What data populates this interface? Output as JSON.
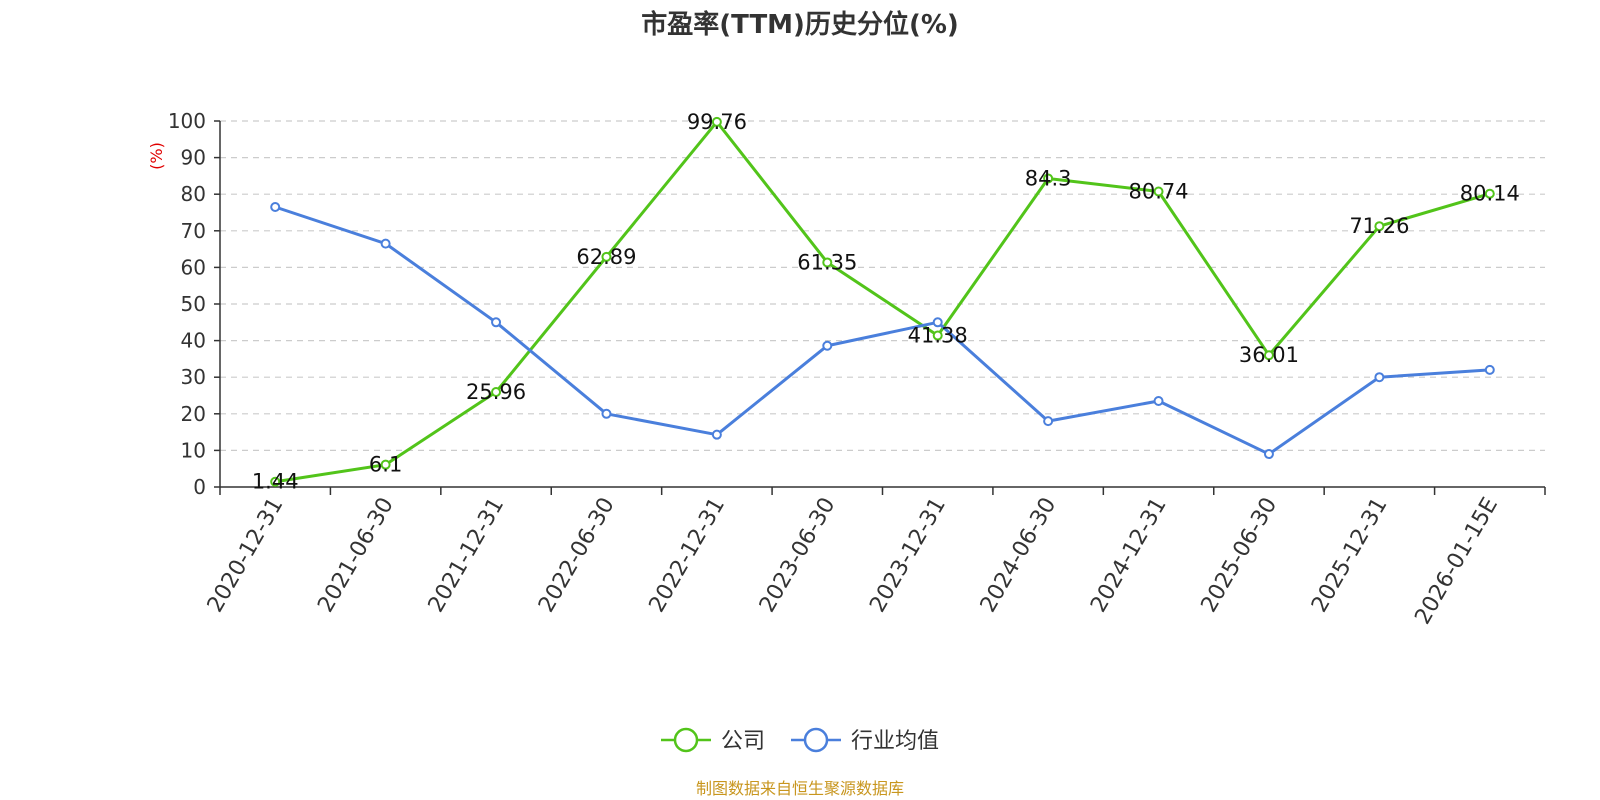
{
  "chart_data": {
    "type": "line",
    "title": "市盈率(TTM)历史分位(%)",
    "ylabel": "(%)",
    "xlabel": "",
    "ylim": [
      0,
      100
    ],
    "yticks": [
      0,
      10,
      20,
      30,
      40,
      50,
      60,
      70,
      80,
      90,
      100
    ],
    "grid": true,
    "legend_position": "bottom-center",
    "categories": [
      "2020-12-31",
      "2021-06-30",
      "2021-12-31",
      "2022-06-30",
      "2022-12-31",
      "2023-06-30",
      "2023-12-31",
      "2024-06-30",
      "2024-12-31",
      "2025-06-30",
      "2025-12-31",
      "2026-01-15E"
    ],
    "series": [
      {
        "name": "公司",
        "color": "#52c41a",
        "values": [
          1.44,
          6.1,
          25.96,
          62.89,
          99.76,
          61.35,
          41.38,
          84.3,
          80.74,
          36.01,
          71.26,
          80.14
        ],
        "labels": [
          "1.44",
          "6.1",
          "25.96",
          "62.89",
          "99.76",
          "61.35",
          "41.38",
          "84.3",
          "80.74",
          "36.01",
          "71.26",
          "80.14"
        ]
      },
      {
        "name": "行业均值",
        "color": "#4a7fdc",
        "values": [
          76.5,
          66.5,
          45.0,
          20.0,
          14.3,
          38.6,
          45.0,
          18.0,
          23.5,
          9.0,
          30.0,
          32.0
        ]
      }
    ]
  },
  "source_text": "制图数据来自恒生聚源数据库",
  "colors": {
    "ylabel": "#e00000",
    "source": "#c8961e",
    "grid": "#cccccc",
    "axis": "#333333"
  }
}
